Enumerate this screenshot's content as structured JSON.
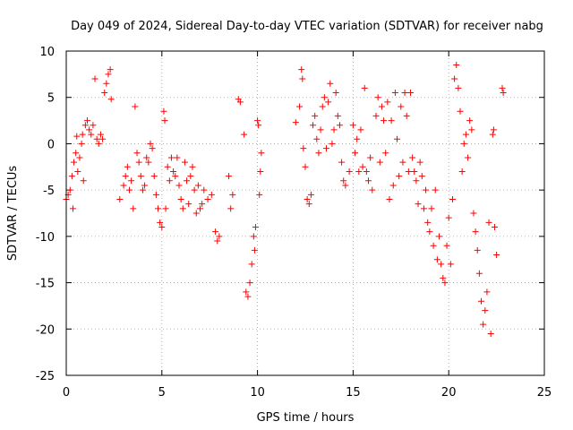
{
  "chart_data": {
    "type": "scatter",
    "title": "Day 049 of 2024, Sidereal Day-to-day VTEC variation (SDTVAR) for receiver nabg",
    "xlabel": "GPS time / hours",
    "ylabel": "SDTVAR / TECUs",
    "xlim": [
      0,
      25
    ],
    "ylim": [
      -25,
      10
    ],
    "xticks": [
      0,
      5,
      10,
      15,
      20,
      25
    ],
    "yticks": [
      -25,
      -20,
      -15,
      -10,
      -5,
      0,
      5,
      10
    ],
    "xtick_labels": [
      "0",
      "5",
      "10",
      "15",
      "20",
      "25"
    ],
    "ytick_labels": [
      "-25",
      "-20",
      "-15",
      "-10",
      "-5",
      "0",
      "5",
      "10"
    ],
    "grid": true,
    "marker": "plus",
    "marker_color": "#ff0000",
    "series": [
      {
        "name": "SDTVAR",
        "points": [
          [
            0.0,
            -6.0
          ],
          [
            0.1,
            -5.5
          ],
          [
            0.2,
            -5.0
          ],
          [
            0.3,
            -3.5
          ],
          [
            0.35,
            -7.0
          ],
          [
            0.4,
            -2.0
          ],
          [
            0.5,
            -1.0
          ],
          [
            0.55,
            0.8
          ],
          [
            0.6,
            -3.0
          ],
          [
            0.7,
            -1.5
          ],
          [
            0.8,
            0.0
          ],
          [
            0.85,
            1.0
          ],
          [
            0.9,
            -4.0
          ],
          [
            1.0,
            2.0
          ],
          [
            1.1,
            2.5
          ],
          [
            1.2,
            1.5
          ],
          [
            1.3,
            1.0
          ],
          [
            1.4,
            2.0
          ],
          [
            1.5,
            7.0
          ],
          [
            1.6,
            0.5
          ],
          [
            1.7,
            0.0
          ],
          [
            1.8,
            1.0
          ],
          [
            1.9,
            0.5
          ],
          [
            2.0,
            5.5
          ],
          [
            2.1,
            6.5
          ],
          [
            2.2,
            7.5
          ],
          [
            2.3,
            8.0
          ],
          [
            2.35,
            4.8
          ],
          [
            2.8,
            -6.0
          ],
          [
            3.0,
            -4.5
          ],
          [
            3.1,
            -3.5
          ],
          [
            3.2,
            -2.5
          ],
          [
            3.3,
            -5.0
          ],
          [
            3.4,
            -4.0
          ],
          [
            3.5,
            -7.0
          ],
          [
            3.6,
            4.0
          ],
          [
            3.7,
            -1.0
          ],
          [
            3.8,
            -2.0
          ],
          [
            3.9,
            -3.5
          ],
          [
            4.0,
            -5.0
          ],
          [
            4.1,
            -4.5
          ],
          [
            4.2,
            -1.5
          ],
          [
            4.3,
            -2.0
          ],
          [
            4.4,
            0.0
          ],
          [
            4.5,
            -0.5
          ],
          [
            4.6,
            -3.5
          ],
          [
            4.7,
            -5.5
          ],
          [
            4.8,
            -7.0
          ],
          [
            4.9,
            -8.5
          ],
          [
            5.0,
            -9.0
          ],
          [
            5.1,
            3.5
          ],
          [
            5.15,
            2.5
          ],
          [
            5.2,
            -7.0
          ],
          [
            5.3,
            -2.5
          ],
          [
            5.4,
            -4.0
          ],
          [
            5.5,
            -1.5
          ],
          [
            5.6,
            -3.0
          ],
          [
            5.7,
            -3.5
          ],
          [
            5.8,
            -1.5
          ],
          [
            5.9,
            -4.5
          ],
          [
            6.0,
            -6.0
          ],
          [
            6.1,
            -7.0
          ],
          [
            6.2,
            -2.0
          ],
          [
            6.3,
            -4.0
          ],
          [
            6.4,
            -6.5
          ],
          [
            6.5,
            -3.5
          ],
          [
            6.6,
            -2.5
          ],
          [
            6.7,
            -5.0
          ],
          [
            6.8,
            -7.5
          ],
          [
            6.9,
            -4.5
          ],
          [
            7.0,
            -7.0
          ],
          [
            7.1,
            -6.5
          ],
          [
            7.2,
            -5.0
          ],
          [
            7.4,
            -6.0
          ],
          [
            7.6,
            -5.5
          ],
          [
            7.8,
            -9.5
          ],
          [
            7.9,
            -10.5
          ],
          [
            8.0,
            -10.0
          ],
          [
            8.5,
            -3.5
          ],
          [
            8.6,
            -7.0
          ],
          [
            8.7,
            -5.5
          ],
          [
            9.0,
            4.8
          ],
          [
            9.1,
            4.5
          ],
          [
            9.3,
            1.0
          ],
          [
            9.4,
            -16.0
          ],
          [
            9.5,
            -16.5
          ],
          [
            9.6,
            -15.0
          ],
          [
            9.7,
            -13.0
          ],
          [
            9.8,
            -10.0
          ],
          [
            9.85,
            -11.5
          ],
          [
            9.9,
            -9.0
          ],
          [
            10.0,
            2.5
          ],
          [
            10.05,
            2.0
          ],
          [
            10.1,
            -5.5
          ],
          [
            10.15,
            -3.0
          ],
          [
            10.2,
            -1.0
          ],
          [
            12.0,
            2.3
          ],
          [
            12.2,
            4.0
          ],
          [
            12.3,
            8.0
          ],
          [
            12.35,
            7.0
          ],
          [
            12.4,
            -0.5
          ],
          [
            12.5,
            -2.5
          ],
          [
            12.6,
            -6.0
          ],
          [
            12.7,
            -6.5
          ],
          [
            12.8,
            -5.5
          ],
          [
            12.9,
            2.0
          ],
          [
            13.0,
            3.0
          ],
          [
            13.1,
            0.5
          ],
          [
            13.2,
            -1.0
          ],
          [
            13.3,
            1.5
          ],
          [
            13.4,
            4.0
          ],
          [
            13.5,
            5.0
          ],
          [
            13.6,
            -0.5
          ],
          [
            13.7,
            4.5
          ],
          [
            13.8,
            6.5
          ],
          [
            13.9,
            0.0
          ],
          [
            14.0,
            1.5
          ],
          [
            14.1,
            5.5
          ],
          [
            14.2,
            3.0
          ],
          [
            14.3,
            2.0
          ],
          [
            14.4,
            -2.0
          ],
          [
            14.5,
            -4.0
          ],
          [
            14.6,
            -4.5
          ],
          [
            14.8,
            -3.0
          ],
          [
            15.0,
            2.0
          ],
          [
            15.1,
            -1.0
          ],
          [
            15.2,
            0.5
          ],
          [
            15.3,
            -3.0
          ],
          [
            15.4,
            1.5
          ],
          [
            15.5,
            -2.5
          ],
          [
            15.6,
            6.0
          ],
          [
            15.7,
            -3.0
          ],
          [
            15.8,
            -4.0
          ],
          [
            15.9,
            -1.5
          ],
          [
            16.0,
            -5.0
          ],
          [
            16.2,
            3.0
          ],
          [
            16.3,
            5.0
          ],
          [
            16.4,
            -2.0
          ],
          [
            16.5,
            4.0
          ],
          [
            16.6,
            2.5
          ],
          [
            16.7,
            -1.0
          ],
          [
            16.8,
            4.5
          ],
          [
            16.9,
            -6.0
          ],
          [
            17.0,
            2.5
          ],
          [
            17.1,
            -4.5
          ],
          [
            17.2,
            5.5
          ],
          [
            17.3,
            0.5
          ],
          [
            17.4,
            -3.5
          ],
          [
            17.5,
            4.0
          ],
          [
            17.6,
            -2.0
          ],
          [
            17.7,
            5.5
          ],
          [
            17.8,
            3.0
          ],
          [
            17.9,
            -3.0
          ],
          [
            18.0,
            5.5
          ],
          [
            18.1,
            -1.5
          ],
          [
            18.2,
            -3.0
          ],
          [
            18.3,
            -4.0
          ],
          [
            18.4,
            -6.5
          ],
          [
            18.5,
            -2.0
          ],
          [
            18.6,
            -3.5
          ],
          [
            18.7,
            -7.0
          ],
          [
            18.8,
            -5.0
          ],
          [
            18.9,
            -8.5
          ],
          [
            19.0,
            -9.5
          ],
          [
            19.1,
            -7.0
          ],
          [
            19.2,
            -11.0
          ],
          [
            19.3,
            -5.0
          ],
          [
            19.4,
            -12.5
          ],
          [
            19.5,
            -10.0
          ],
          [
            19.6,
            -13.0
          ],
          [
            19.7,
            -14.5
          ],
          [
            19.8,
            -15.0
          ],
          [
            19.9,
            -11.0
          ],
          [
            20.0,
            -8.0
          ],
          [
            20.1,
            -13.0
          ],
          [
            20.2,
            -6.0
          ],
          [
            20.3,
            7.0
          ],
          [
            20.4,
            8.5
          ],
          [
            20.5,
            6.0
          ],
          [
            20.6,
            3.5
          ],
          [
            20.7,
            -3.0
          ],
          [
            20.8,
            0.0
          ],
          [
            20.9,
            1.0
          ],
          [
            21.0,
            -1.5
          ],
          [
            21.1,
            2.5
          ],
          [
            21.2,
            1.5
          ],
          [
            21.3,
            -7.5
          ],
          [
            21.4,
            -9.5
          ],
          [
            21.5,
            -11.5
          ],
          [
            21.6,
            -14.0
          ],
          [
            21.7,
            -17.0
          ],
          [
            21.8,
            -19.5
          ],
          [
            21.9,
            -18.0
          ],
          [
            22.0,
            -16.0
          ],
          [
            22.1,
            -8.5
          ],
          [
            22.2,
            -20.5
          ],
          [
            22.3,
            1.0
          ],
          [
            22.35,
            1.5
          ],
          [
            22.4,
            -9.0
          ],
          [
            22.5,
            -12.0
          ],
          [
            22.8,
            6.0
          ],
          [
            22.85,
            5.5
          ]
        ]
      }
    ]
  }
}
